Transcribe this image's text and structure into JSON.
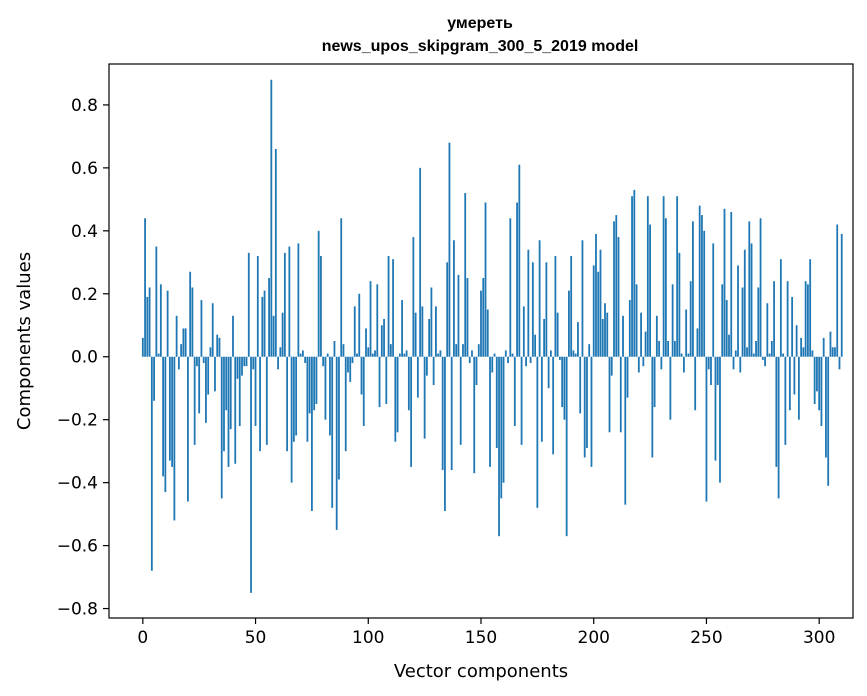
{
  "chart_data": {
    "type": "bar",
    "title_line1": "умереть",
    "title_line2": "news_upos_skipgram_300_5_2019 model",
    "xlabel": "Vector components",
    "ylabel": "Components values",
    "xlim": [
      -15,
      315
    ],
    "ylim": [
      -0.83,
      0.93
    ],
    "xticks": [
      0,
      50,
      100,
      150,
      200,
      250,
      300
    ],
    "xtick_labels": [
      "0",
      "50",
      "100",
      "150",
      "200",
      "250",
      "300"
    ],
    "yticks": [
      -0.8,
      -0.6,
      -0.4,
      -0.2,
      0.0,
      0.2,
      0.4,
      0.6,
      0.8
    ],
    "ytick_labels": [
      "−0.8",
      "−0.6",
      "−0.4",
      "−0.2",
      "0.0",
      "0.2",
      "0.4",
      "0.6",
      "0.8"
    ],
    "bar_color": "#1f77b4",
    "grid": false,
    "values": [
      0.06,
      0.44,
      0.19,
      0.22,
      -0.68,
      -0.14,
      0.35,
      0.01,
      0.23,
      -0.38,
      -0.43,
      0.21,
      -0.33,
      -0.35,
      -0.52,
      0.13,
      -0.04,
      0.04,
      0.09,
      0.09,
      -0.46,
      0.27,
      0.22,
      -0.28,
      -0.03,
      -0.18,
      0.18,
      -0.02,
      -0.21,
      -0.12,
      0.03,
      0.17,
      -0.11,
      0.07,
      0.06,
      -0.45,
      -0.3,
      -0.17,
      -0.35,
      -0.23,
      0.13,
      -0.34,
      -0.07,
      -0.22,
      -0.06,
      -0.03,
      -0.03,
      0.33,
      -0.75,
      -0.04,
      -0.22,
      0.32,
      -0.3,
      0.19,
      0.21,
      -0.28,
      0.25,
      0.88,
      0.13,
      0.66,
      -0.04,
      0.03,
      0.14,
      0.33,
      -0.3,
      0.35,
      -0.4,
      -0.27,
      -0.25,
      0.36,
      0.01,
      0.02,
      -0.02,
      -0.27,
      -0.18,
      -0.49,
      -0.17,
      -0.15,
      0.4,
      0.32,
      -0.03,
      -0.2,
      0.01,
      -0.25,
      -0.48,
      0.05,
      -0.55,
      -0.39,
      0.44,
      0.04,
      -0.3,
      -0.05,
      -0.08,
      -0.02,
      0.16,
      0.01,
      0.2,
      -0.12,
      -0.22,
      0.09,
      0.03,
      0.24,
      0.01,
      0.02,
      0.23,
      -0.16,
      0.1,
      0.12,
      -0.15,
      0.32,
      0.04,
      0.31,
      -0.27,
      -0.24,
      0.01,
      0.18,
      0.01,
      0.02,
      -0.17,
      -0.35,
      0.38,
      0.14,
      -0.13,
      0.6,
      0.16,
      -0.26,
      -0.06,
      0.12,
      0.22,
      -0.09,
      0.16,
      0.01,
      0.02,
      -0.36,
      -0.49,
      0.3,
      0.68,
      -0.36,
      0.37,
      0.04,
      0.26,
      -0.28,
      0.04,
      0.52,
      0.25,
      -0.02,
      0.02,
      -0.37,
      -0.09,
      0.04,
      0.21,
      0.25,
      0.49,
      0.15,
      -0.35,
      -0.05,
      0.01,
      -0.29,
      -0.57,
      -0.45,
      -0.4,
      0.02,
      -0.02,
      0.44,
      0.01,
      -0.22,
      0.49,
      0.61,
      -0.28,
      0.16,
      -0.03,
      0.34,
      -0.02,
      0.3,
      0.07,
      -0.48,
      0.37,
      -0.27,
      0.12,
      0.3,
      -0.1,
      0.02,
      -0.31,
      0.32,
      0.14,
      -0.01,
      -0.16,
      -0.2,
      -0.57,
      0.21,
      0.32,
      0.02,
      0.01,
      0.11,
      -0.18,
      0.37,
      -0.32,
      -0.29,
      0.04,
      -0.35,
      0.29,
      0.39,
      0.27,
      0.34,
      0.12,
      0.17,
      0.14,
      -0.24,
      -0.06,
      0.43,
      0.45,
      0.38,
      -0.24,
      0.13,
      -0.47,
      -0.13,
      0.18,
      0.51,
      0.53,
      0.23,
      -0.05,
      0.14,
      -0.03,
      0.08,
      0.51,
      0.42,
      -0.32,
      -0.16,
      0.13,
      0.05,
      -0.04,
      0.51,
      0.44,
      0.05,
      -0.2,
      0.23,
      0.05,
      0.51,
      0.33,
      0.01,
      -0.05,
      0.15,
      0.01,
      0.24,
      0.43,
      -0.17,
      0.09,
      0.48,
      0.45,
      0.4,
      -0.46,
      -0.04,
      -0.09,
      0.36,
      -0.33,
      -0.09,
      -0.4,
      0.23,
      0.47,
      0.18,
      0.07,
      0.46,
      -0.04,
      0.02,
      0.29,
      -0.05,
      0.22,
      0.34,
      0.03,
      0.43,
      0.36,
      0.01,
      0.05,
      0.22,
      0.44,
      -0.01,
      -0.03,
      0.17,
      0.01,
      0.05,
      0.24,
      -0.35,
      -0.45,
      0.31,
      0.01,
      -0.28,
      0.24,
      -0.17,
      0.19,
      -0.12,
      0.1,
      -0.2,
      0.06,
      0.03,
      0.24,
      0.23,
      0.31,
      0.02,
      -0.15,
      -0.11,
      -0.17,
      -0.22,
      0.06,
      -0.32,
      -0.41,
      0.08,
      0.03,
      0.03,
      0.42,
      -0.04,
      0.39
    ]
  }
}
